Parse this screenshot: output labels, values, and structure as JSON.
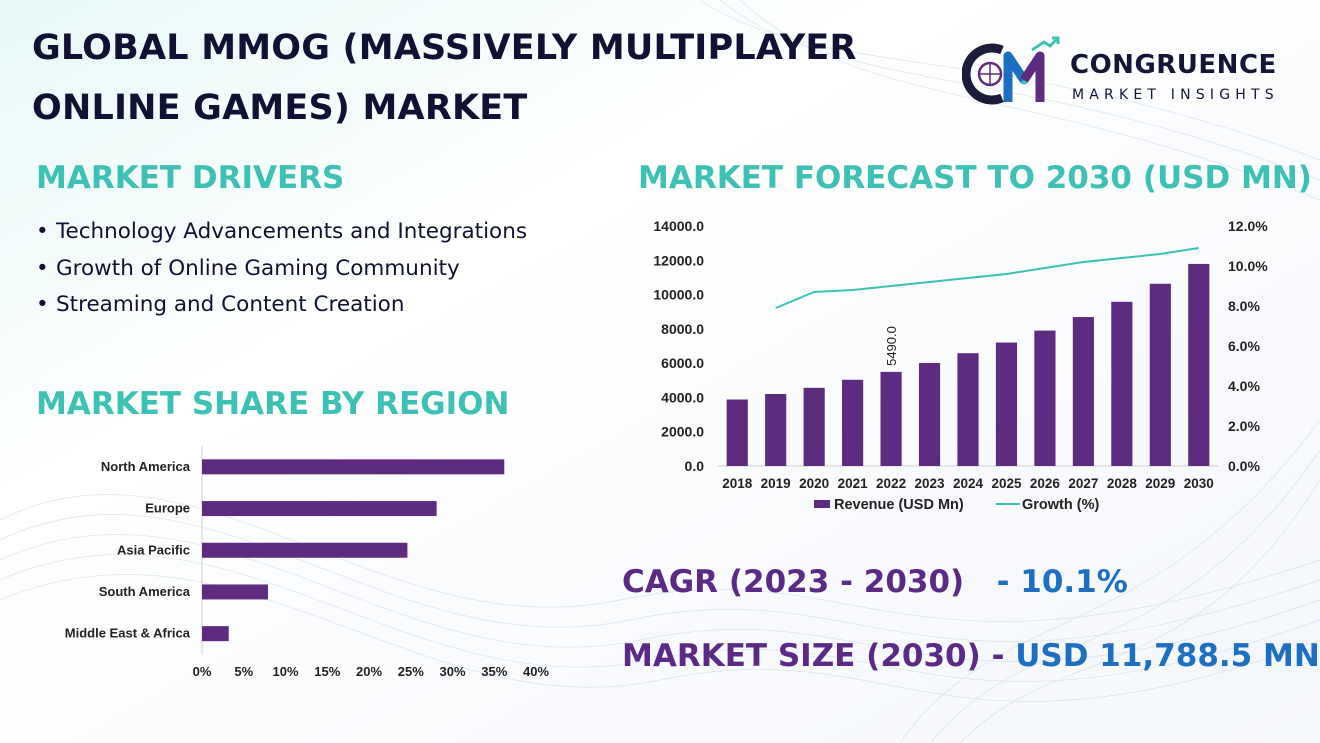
{
  "title": "GLOBAL MMOG (MASSIVELY MULTIPLAYER ONLINE GAMES) MARKET",
  "logo": {
    "name": "CONGRUENCE",
    "tagline": "MARKET INSIGHTS"
  },
  "drivers": {
    "heading": "MARKET DRIVERS",
    "items": [
      "Technology Advancements and Integrations",
      "Growth of Online Gaming Community",
      "Streaming and Content Creation"
    ]
  },
  "region": {
    "heading": "MARKET SHARE BY REGION"
  },
  "forecast": {
    "heading": "MARKET FORECAST TO 2030 (USD MN)"
  },
  "kpis": {
    "cagr_label": "CAGR (2023 - 2030)",
    "cagr_value": "- 10.1%",
    "size_label": "MARKET SIZE (2030) -",
    "size_value": "USD 11,788.5 MN"
  },
  "colors": {
    "bar": "#5f2b80",
    "line": "#3cc1b4",
    "heading": "#3cc1b4",
    "kpi_label": "#5b2a86",
    "kpi_value": "#1c6fc1"
  },
  "chart_data": [
    {
      "type": "bar",
      "orientation": "horizontal",
      "categories": [
        "North America",
        "Europe",
        "Asia Pacific",
        "South America",
        "Middle East & Africa"
      ],
      "values": [
        36.2,
        28.1,
        24.6,
        7.9,
        3.2
      ],
      "unit": "%",
      "xlim": [
        0,
        40
      ],
      "xticks": [
        "0%",
        "5%",
        "10%",
        "15%",
        "20%",
        "25%",
        "30%",
        "35%",
        "40%"
      ],
      "grid": false
    },
    {
      "type": "bar",
      "categories": [
        "2018",
        "2019",
        "2020",
        "2021",
        "2022",
        "2023",
        "2024",
        "2025",
        "2026",
        "2027",
        "2028",
        "2029",
        "2030"
      ],
      "series": [
        {
          "name": "Revenue (USD Mn)",
          "type": "bar",
          "axis": "left",
          "values": [
            3880,
            4200,
            4560,
            5030,
            5490,
            6010,
            6580,
            7200,
            7900,
            8690,
            9580,
            10630,
            11788.5
          ]
        },
        {
          "name": "Growth (%)",
          "type": "line",
          "axis": "right",
          "values": [
            null,
            7.9,
            8.7,
            8.8,
            9.0,
            9.2,
            9.4,
            9.6,
            9.9,
            10.2,
            10.4,
            10.6,
            10.9
          ]
        }
      ],
      "ylim_left": [
        0,
        14000
      ],
      "yticks_left": [
        "0.0",
        "2000.0",
        "4000.0",
        "6000.0",
        "8000.0",
        "10000.0",
        "12000.0",
        "14000.0"
      ],
      "ylim_right": [
        0,
        12
      ],
      "yticks_right": [
        "0.0%",
        "2.0%",
        "4.0%",
        "6.0%",
        "8.0%",
        "10.0%",
        "12.0%"
      ],
      "annotations": [
        {
          "category": "2022",
          "text": "5490.0"
        }
      ],
      "legend": "bottom",
      "grid": false
    }
  ]
}
